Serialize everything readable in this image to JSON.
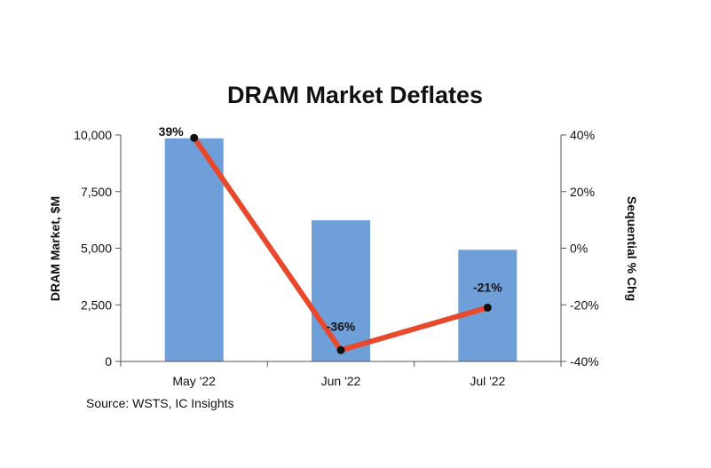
{
  "chart_data": {
    "type": "bar+line",
    "title": "DRAM Market Deflates",
    "categories": [
      "May '22",
      "Jun '22",
      "Jul '22"
    ],
    "series": [
      {
        "name": "DRAM Market, $M",
        "type": "bar",
        "axis": "left",
        "values": [
          9850,
          6230,
          4930
        ],
        "color": "#6f9fd8"
      },
      {
        "name": "Sequential % Chg",
        "type": "line",
        "axis": "right",
        "values": [
          39,
          -36,
          -21
        ],
        "labels": [
          "39%",
          "-36%",
          "-21%"
        ],
        "color": "#e8482b",
        "marker_color": "#111111"
      }
    ],
    "y_left": {
      "label": "DRAM Market, $M",
      "ylim": [
        0,
        10000
      ],
      "ticks": [
        0,
        2500,
        5000,
        7500,
        10000
      ],
      "tick_labels": [
        "0",
        "2,500",
        "5,000",
        "7,500",
        "10,000"
      ]
    },
    "y_right": {
      "label": "Sequential % Chg",
      "ylim": [
        -40,
        40
      ],
      "ticks": [
        -40,
        -20,
        0,
        20,
        40
      ],
      "tick_labels": [
        "-40%",
        "-20%",
        "0%",
        "20%",
        "40%"
      ]
    },
    "grid": false,
    "legend": "none"
  },
  "source_note": "Source:  WSTS, IC Insights"
}
